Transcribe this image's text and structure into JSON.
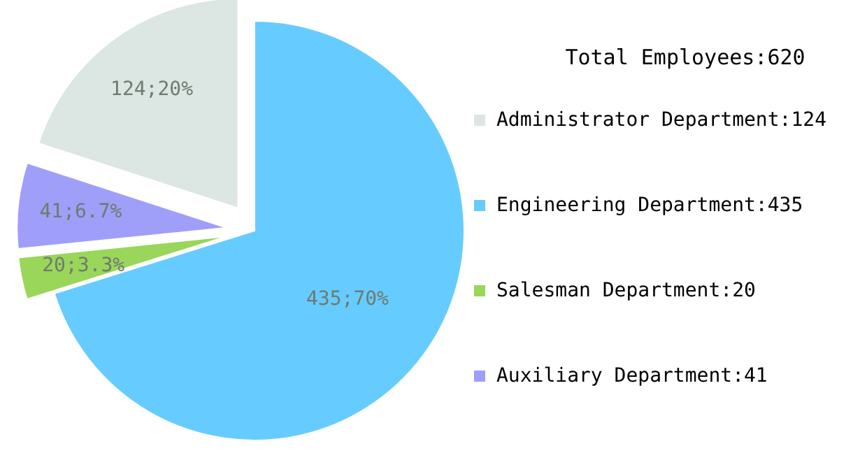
{
  "chart_data": {
    "type": "pie",
    "legend_title": "Total Employees:620",
    "categories": [
      "Administrator Department:124",
      "Engineering Department:435",
      "Salesman Department:20",
      "Auxiliary Department:41"
    ],
    "values": [
      124,
      435,
      20,
      41
    ],
    "colors": [
      "#dce6e2",
      "#66ccff",
      "#99d65a",
      "#9f9ff9"
    ],
    "value_labels": [
      "124;20%",
      "435;70%",
      "20;3.3%",
      "41;6.7%"
    ],
    "legend": "right"
  }
}
